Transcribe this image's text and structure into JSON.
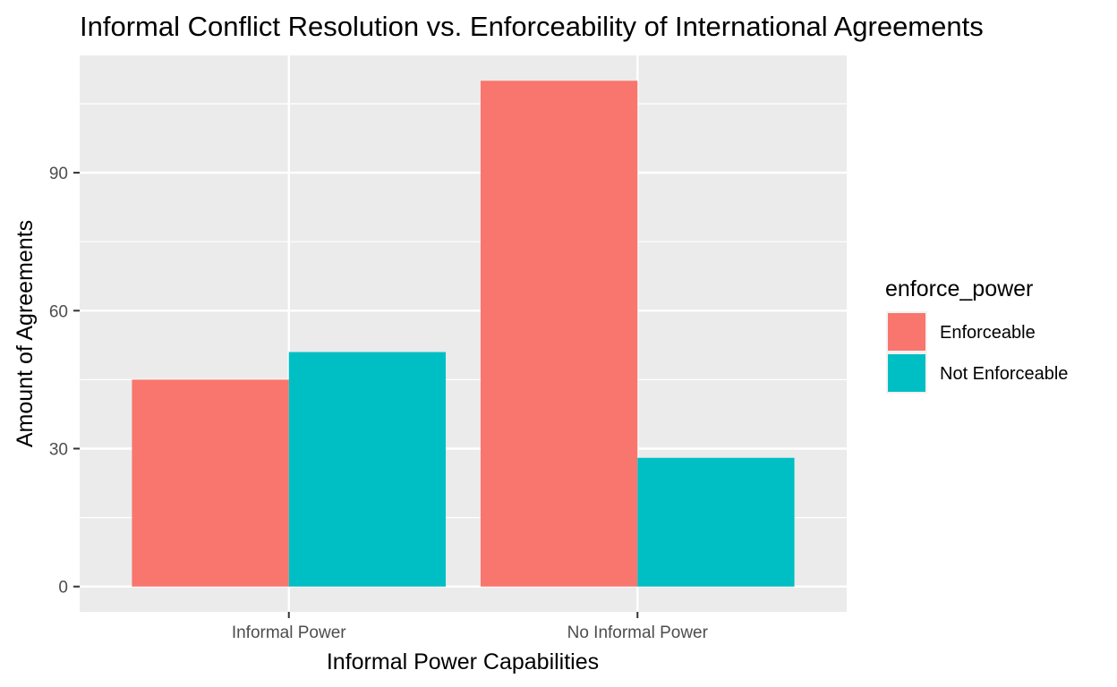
{
  "chart_data": {
    "type": "bar",
    "title": "Informal Conflict Resolution vs. Enforceability of International Agreements",
    "xlabel": "Informal Power Capabilities",
    "ylabel": "Amount of Agreements",
    "categories": [
      "Informal Power",
      "No Informal Power"
    ],
    "series": [
      {
        "name": "Enforceable",
        "color": "#F8766D",
        "values": [
          45,
          110
        ]
      },
      {
        "name": "Not Enforceable",
        "color": "#00BFC4",
        "values": [
          51,
          28
        ]
      }
    ],
    "yticks": [
      0,
      30,
      60,
      90
    ],
    "ytick_labels": [
      "0",
      "30",
      "60",
      "90"
    ],
    "ylim": [
      -5.5,
      115.5
    ],
    "grid": true,
    "legend": {
      "title": "enforce_power",
      "position": "right"
    },
    "panel_background": "#EBEBEB"
  }
}
